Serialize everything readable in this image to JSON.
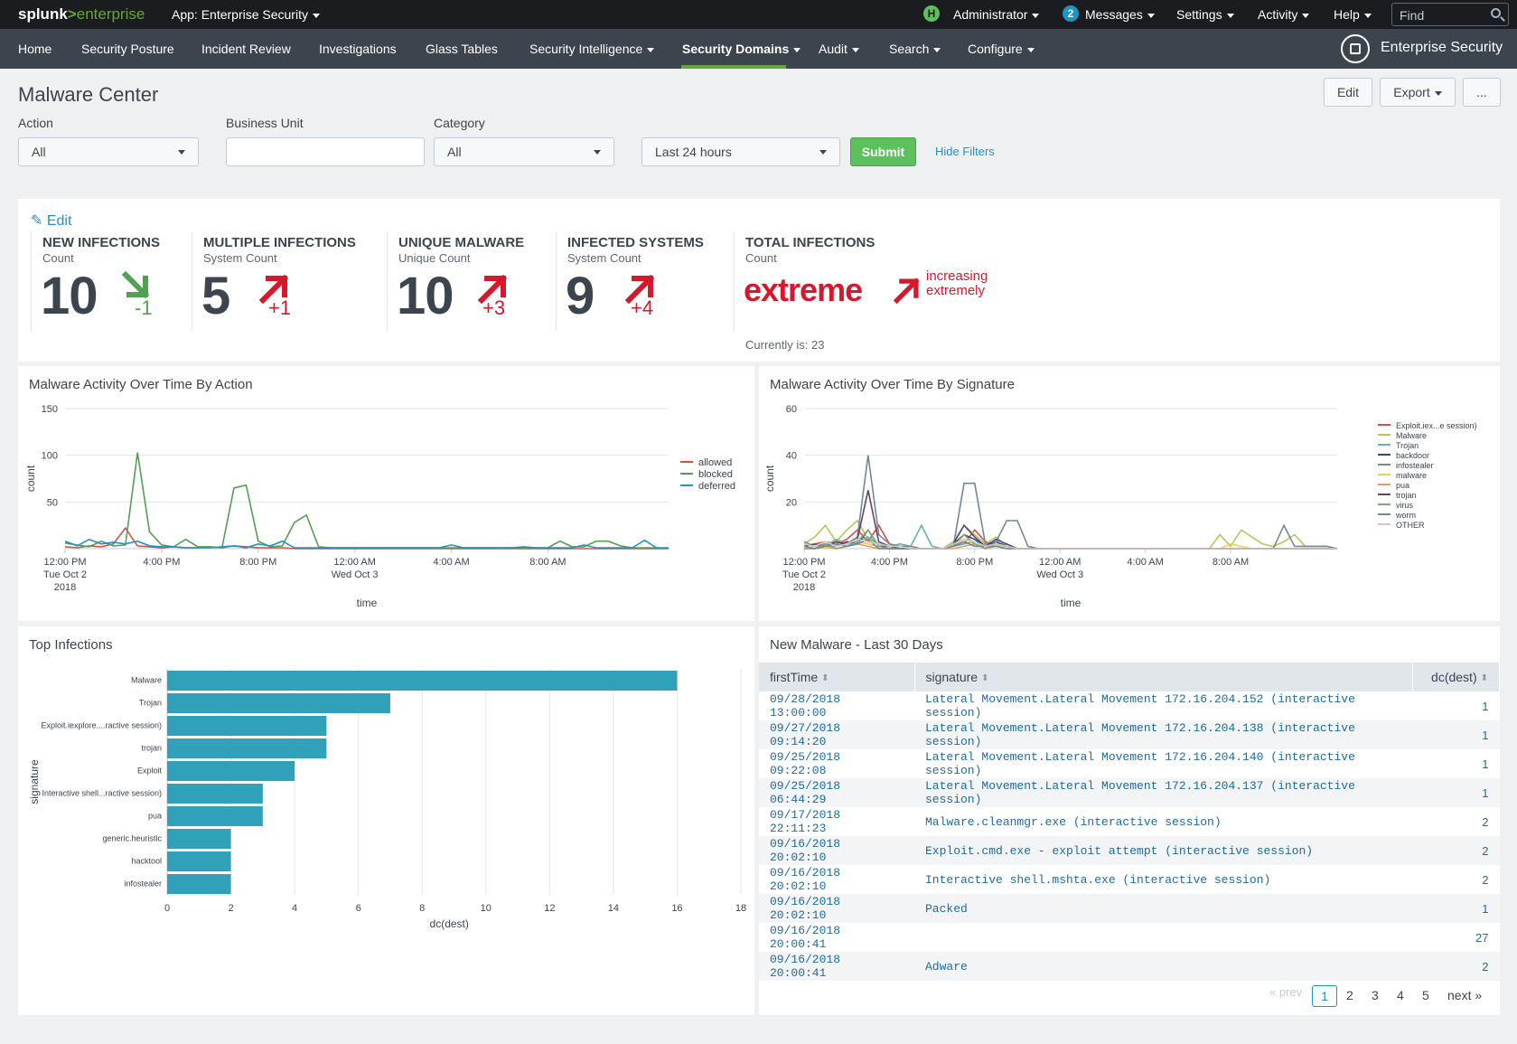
{
  "topbar": {
    "logo_main": "splunk",
    "logo_gt": ">",
    "logo_product": "enterprise",
    "app_label": "App: Enterprise Security",
    "user_initial": "H",
    "user_label": "Administrator",
    "messages_count": "2",
    "messages_label": "Messages",
    "settings_label": "Settings",
    "activity_label": "Activity",
    "help_label": "Help",
    "find_placeholder": "Find"
  },
  "nav": {
    "items": [
      "Home",
      "Security Posture",
      "Incident Review",
      "Investigations",
      "Glass Tables",
      "Security Intelligence",
      "Security Domains",
      "Audit",
      "Search",
      "Configure"
    ],
    "app_title": "Enterprise Security"
  },
  "page": {
    "title": "Malware Center",
    "edit_label": "Edit",
    "export_label": "Export",
    "more_label": "..."
  },
  "filters": {
    "action_label": "Action",
    "action_value": "All",
    "business_unit_label": "Business Unit",
    "business_unit_value": "",
    "category_label": "Category",
    "category_value": "All",
    "time_value": "Last 24 hours",
    "submit_label": "Submit",
    "hide_filters_label": "Hide Filters"
  },
  "kpis": {
    "edit_label": "Edit",
    "items": [
      {
        "title": "NEW INFECTIONS",
        "sub": "Count",
        "value": "10",
        "delta": "-1",
        "trend": "down",
        "color": "#53a051"
      },
      {
        "title": "MULTIPLE INFECTIONS",
        "sub": "System Count",
        "value": "5",
        "delta": "+1",
        "trend": "up",
        "color": "#d6182d"
      },
      {
        "title": "UNIQUE MALWARE",
        "sub": "Unique Count",
        "value": "10",
        "delta": "+3",
        "trend": "up",
        "color": "#d6182d"
      },
      {
        "title": "INFECTED SYSTEMS",
        "sub": "System Count",
        "value": "9",
        "delta": "+4",
        "trend": "up",
        "color": "#d6182d"
      }
    ],
    "total": {
      "title": "TOTAL INFECTIONS",
      "sub": "Count",
      "value": "extreme",
      "trend_line1": "increasing",
      "trend_line2": "extremely",
      "current": "Currently is: 23"
    }
  },
  "panels": {
    "action_chart_title": "Malware Activity Over Time By Action",
    "signature_chart_title": "Malware Activity Over Time By Signature",
    "top_infections_title": "Top Infections",
    "new_malware_title": "New Malware - Last 30 Days"
  },
  "chart_data": [
    {
      "type": "line",
      "title": "Malware Activity Over Time By Action",
      "xlabel": "time",
      "ylabel": "count",
      "ylim": [
        0,
        150
      ],
      "y_ticks": [
        50,
        100,
        150
      ],
      "x_tick_labels": [
        [
          "12:00 PM",
          "Tue Oct 2",
          "2018"
        ],
        [
          "4:00 PM"
        ],
        [
          "8:00 PM"
        ],
        [
          "12:00 AM",
          "Wed Oct 3"
        ],
        [
          "4:00 AM"
        ],
        [
          "8:00 AM"
        ]
      ],
      "x_tick_index": [
        0,
        8,
        16,
        24,
        32,
        40
      ],
      "grid": true,
      "legend": "right",
      "series": [
        {
          "name": "allowed",
          "color": "#dc4e41",
          "values": [
            2,
            1,
            3,
            2,
            5,
            22,
            3,
            2,
            1,
            2,
            1,
            1,
            2,
            1,
            3,
            2,
            1,
            1,
            1,
            0,
            0,
            0,
            0,
            0,
            0,
            0,
            0,
            0,
            0,
            0,
            0,
            0,
            0,
            0,
            0,
            0,
            0,
            0,
            0,
            0,
            0,
            0,
            0,
            0,
            0,
            0,
            0,
            0,
            0,
            0,
            0
          ]
        },
        {
          "name": "blocked",
          "color": "#53a051",
          "values": [
            6,
            4,
            2,
            8,
            3,
            4,
            103,
            18,
            4,
            2,
            10,
            2,
            2,
            1,
            65,
            68,
            8,
            2,
            3,
            28,
            36,
            2,
            1,
            1,
            1,
            1,
            1,
            1,
            1,
            1,
            1,
            1,
            1,
            1,
            1,
            1,
            1,
            1,
            1,
            1,
            1,
            8,
            2,
            2,
            8,
            8,
            3,
            1,
            1,
            1,
            0
          ]
        },
        {
          "name": "deferred",
          "color": "#1e93c6",
          "values": [
            8,
            3,
            10,
            5,
            7,
            5,
            8,
            3,
            2,
            2,
            1,
            1,
            1,
            2,
            3,
            1,
            5,
            3,
            8,
            1,
            1,
            1,
            1,
            1,
            1,
            1,
            1,
            1,
            1,
            1,
            1,
            1,
            4,
            1,
            1,
            1,
            1,
            1,
            2,
            1,
            1,
            1,
            1,
            4,
            1,
            1,
            1,
            1,
            9,
            1,
            1
          ]
        }
      ]
    },
    {
      "type": "line",
      "title": "Malware Activity Over Time By Signature",
      "xlabel": "time",
      "ylabel": "count",
      "ylim": [
        0,
        60
      ],
      "y_ticks": [
        20,
        40,
        60
      ],
      "x_tick_labels": [
        [
          "12:00 PM",
          "Tue Oct 2",
          "2018"
        ],
        [
          "4:00 PM"
        ],
        [
          "8:00 PM"
        ],
        [
          "12:00 AM",
          "Wed Oct 3"
        ],
        [
          "4:00 AM"
        ],
        [
          "8:00 AM"
        ]
      ],
      "x_tick_index": [
        0,
        8,
        16,
        24,
        32,
        40
      ],
      "grid": true,
      "legend": "right",
      "series": [
        {
          "name": "Exploit.iex...e session)",
          "color": "#dc4e41",
          "values": [
            1,
            2,
            3,
            2,
            4,
            8,
            3,
            10,
            2,
            1,
            0,
            0,
            0,
            0,
            1,
            2,
            8,
            3,
            2,
            1,
            0,
            0,
            0,
            0,
            0,
            0,
            0,
            0,
            0,
            0,
            0,
            0,
            0,
            0,
            0,
            0,
            0,
            0,
            0,
            0,
            0,
            0,
            0,
            0,
            0,
            0,
            0,
            0,
            0,
            0,
            0
          ]
        },
        {
          "name": "Malware",
          "color": "#b6c75a",
          "values": [
            2,
            5,
            10,
            3,
            8,
            12,
            4,
            2,
            1,
            1,
            0,
            0,
            0,
            0,
            3,
            10,
            6,
            2,
            5,
            1,
            0,
            0,
            0,
            0,
            0,
            0,
            0,
            0,
            0,
            0,
            0,
            0,
            0,
            0,
            0,
            0,
            0,
            0,
            0,
            6,
            1,
            8,
            5,
            2,
            1,
            3,
            6,
            1,
            1,
            1,
            0
          ]
        },
        {
          "name": "Trojan",
          "color": "#62b3b2",
          "values": [
            1,
            2,
            1,
            4,
            2,
            3,
            5,
            2,
            1,
            2,
            1,
            10,
            1,
            0,
            1,
            2,
            3,
            1,
            1,
            2,
            0,
            0,
            0,
            0,
            0,
            0,
            0,
            0,
            0,
            0,
            0,
            0,
            0,
            0,
            0,
            0,
            0,
            0,
            0,
            0,
            0,
            0,
            0,
            0,
            0,
            0,
            0,
            0,
            0,
            0,
            0
          ]
        },
        {
          "name": "backdoor",
          "color": "#294e70",
          "values": [
            0,
            1,
            2,
            1,
            3,
            2,
            8,
            1,
            1,
            0,
            0,
            0,
            0,
            0,
            2,
            6,
            4,
            1,
            3,
            1,
            0,
            0,
            0,
            0,
            0,
            0,
            0,
            0,
            0,
            0,
            0,
            0,
            0,
            0,
            0,
            0,
            0,
            0,
            0,
            0,
            0,
            0,
            0,
            0,
            0,
            0,
            0,
            0,
            0,
            0,
            0
          ]
        },
        {
          "name": "infostealer",
          "color": "#738795",
          "values": [
            3,
            1,
            2,
            1,
            2,
            5,
            40,
            6,
            2,
            1,
            1,
            0,
            0,
            0,
            1,
            28,
            28,
            2,
            3,
            12,
            12,
            1,
            0,
            0,
            0,
            0,
            0,
            0,
            0,
            0,
            0,
            0,
            0,
            0,
            0,
            0,
            0,
            0,
            0,
            0,
            0,
            0,
            0,
            0,
            0,
            10,
            1,
            1,
            1,
            1,
            0
          ]
        },
        {
          "name": "malware",
          "color": "#edd051",
          "values": [
            0,
            1,
            0,
            2,
            1,
            3,
            2,
            1,
            0,
            0,
            0,
            0,
            0,
            0,
            1,
            4,
            2,
            1,
            2,
            0,
            0,
            0,
            0,
            0,
            0,
            0,
            0,
            0,
            0,
            0,
            0,
            0,
            0,
            0,
            0,
            0,
            0,
            0,
            0,
            0,
            2,
            1,
            0,
            0,
            0,
            0,
            0,
            0,
            0,
            0,
            0
          ]
        },
        {
          "name": "pua",
          "color": "#ec9960",
          "values": [
            0,
            0,
            1,
            0,
            1,
            2,
            1,
            0,
            0,
            0,
            0,
            0,
            0,
            0,
            0,
            1,
            2,
            0,
            1,
            0,
            0,
            0,
            0,
            0,
            0,
            0,
            0,
            0,
            0,
            0,
            0,
            0,
            0,
            0,
            0,
            0,
            0,
            0,
            0,
            0,
            0,
            0,
            0,
            0,
            0,
            0,
            0,
            0,
            0,
            0,
            0
          ]
        },
        {
          "name": "trojan",
          "color": "#5a4575",
          "values": [
            1,
            2,
            1,
            3,
            2,
            4,
            25,
            3,
            1,
            0,
            0,
            0,
            0,
            0,
            2,
            10,
            5,
            1,
            4,
            2,
            0,
            0,
            0,
            0,
            0,
            0,
            0,
            0,
            0,
            0,
            0,
            0,
            0,
            0,
            0,
            0,
            0,
            0,
            0,
            0,
            0,
            0,
            0,
            0,
            0,
            0,
            0,
            0,
            0,
            0,
            0
          ]
        },
        {
          "name": "virus",
          "color": "#7ea77b",
          "values": [
            0,
            0,
            2,
            0,
            1,
            3,
            8,
            1,
            0,
            0,
            0,
            0,
            0,
            0,
            1,
            6,
            2,
            0,
            2,
            1,
            0,
            0,
            0,
            0,
            0,
            0,
            0,
            0,
            0,
            0,
            0,
            0,
            0,
            0,
            0,
            0,
            0,
            0,
            0,
            0,
            0,
            0,
            0,
            0,
            0,
            0,
            0,
            0,
            0,
            0,
            0
          ]
        },
        {
          "name": "worm",
          "color": "#708794",
          "values": [
            1,
            0,
            1,
            2,
            1,
            2,
            4,
            0,
            0,
            0,
            0,
            0,
            0,
            0,
            1,
            3,
            1,
            1,
            1,
            0,
            0,
            0,
            0,
            0,
            0,
            0,
            0,
            0,
            0,
            0,
            0,
            0,
            0,
            0,
            0,
            0,
            0,
            0,
            0,
            0,
            0,
            0,
            0,
            0,
            0,
            0,
            0,
            0,
            0,
            0,
            0
          ]
        },
        {
          "name": "OTHER",
          "color": "#d7c6bf",
          "values": [
            2,
            1,
            3,
            1,
            2,
            4,
            3,
            2,
            1,
            1,
            0,
            0,
            0,
            0,
            2,
            4,
            3,
            1,
            2,
            1,
            0,
            0,
            0,
            0,
            0,
            0,
            0,
            0,
            0,
            0,
            0,
            0,
            0,
            0,
            0,
            0,
            0,
            0,
            0,
            0,
            0,
            0,
            0,
            0,
            0,
            0,
            0,
            0,
            0,
            0,
            0
          ]
        }
      ]
    },
    {
      "type": "bar",
      "orientation": "horizontal",
      "title": "Top Infections",
      "xlabel": "dc(dest)",
      "ylabel": "signature",
      "xlim": [
        0,
        18
      ],
      "x_ticks": [
        0,
        2,
        4,
        6,
        8,
        10,
        12,
        14,
        16,
        18
      ],
      "grid": true,
      "color": "#31a1b9",
      "categories": [
        "Malware",
        "Trojan",
        "Exploit.iexplore....ractive session)",
        "trojan",
        "Exploit",
        "Interactive shell...ractive session)",
        "pua",
        "generic.heuristic",
        "hacktool",
        "infostealer"
      ],
      "values": [
        16,
        7,
        5,
        5,
        4,
        3,
        3,
        2,
        2,
        2
      ]
    }
  ],
  "new_malware_table": {
    "columns": [
      "firstTime",
      "signature",
      "dc(dest)"
    ],
    "rows": [
      [
        "09/28/2018 13:00:00",
        "Lateral Movement.Lateral Movement 172.16.204.152 (interactive session)",
        "1"
      ],
      [
        "09/27/2018 09:14:20",
        "Lateral Movement.Lateral Movement 172.16.204.138 (interactive session)",
        "1"
      ],
      [
        "09/25/2018 09:22:08",
        "Lateral Movement.Lateral Movement 172.16.204.140 (interactive session)",
        "1"
      ],
      [
        "09/25/2018 06:44:29",
        "Lateral Movement.Lateral Movement 172.16.204.137 (interactive session)",
        "1"
      ],
      [
        "09/17/2018 22:11:23",
        "Malware.cleanmgr.exe (interactive session)",
        "2"
      ],
      [
        "09/16/2018 20:02:10",
        "Exploit.cmd.exe - exploit attempt (interactive session)",
        "2"
      ],
      [
        "09/16/2018 20:02:10",
        "Interactive shell.mshta.exe (interactive session)",
        "2"
      ],
      [
        "09/16/2018 20:02:10",
        "Packed",
        "1"
      ],
      [
        "09/16/2018 20:00:41",
        "",
        "27"
      ],
      [
        "09/16/2018 20:00:41",
        "Adware",
        "2"
      ]
    ],
    "pagination": {
      "prev": "« prev",
      "pages": [
        "1",
        "2",
        "3",
        "4",
        "5"
      ],
      "current": "1",
      "next": "next »"
    }
  }
}
